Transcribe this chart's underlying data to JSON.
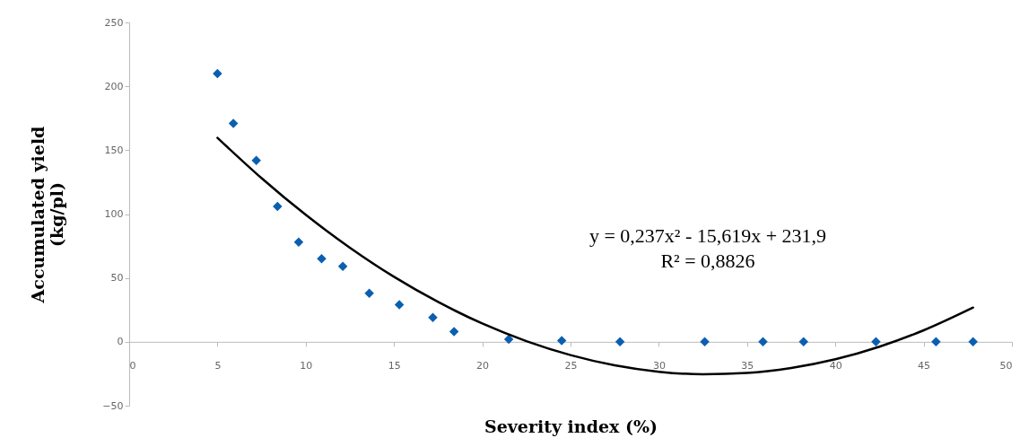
{
  "chart_data": {
    "type": "scatter",
    "xlabel": "Severity index (%)",
    "ylabel": "Accumulated yield\n(kg/pl)",
    "xlim": [
      0,
      50
    ],
    "xticks": [
      0,
      5,
      10,
      15,
      20,
      25,
      30,
      35,
      40,
      45,
      50
    ],
    "ylim": [
      -50,
      250
    ],
    "yticks": [
      -50,
      0,
      50,
      100,
      150,
      200,
      250
    ],
    "grid": false,
    "marker": "diamond",
    "annotations": [
      "y = 0,237x² - 15,619x + 231,9",
      "R² = 0,8826"
    ],
    "series": [
      {
        "color": "#0b5fb0",
        "x": [
          5,
          5.9,
          7.2,
          8.4,
          9.6,
          10.9,
          12.1,
          13.6,
          15.3,
          17.2,
          18.4,
          21.5,
          24.5,
          27.8,
          32.6,
          35.9,
          38.2,
          42.3,
          45.7,
          47.8
        ],
        "values": [
          210,
          171,
          142,
          106,
          78,
          65,
          59,
          38,
          29,
          19,
          8,
          2,
          1,
          0,
          0,
          0,
          0,
          0,
          0,
          0
        ]
      },
      {
        "type": "line",
        "color": "#000000",
        "marker": "none",
        "x": [
          5,
          7.5,
          10,
          12.5,
          15,
          17.5,
          20,
          22.5,
          25,
          27.5,
          30,
          32.5,
          35,
          37.5,
          40,
          42.5,
          45,
          47.8
        ],
        "values": [
          159.7,
          128.1,
          99.4,
          73.7,
          50.9,
          31.2,
          14.3,
          0.5,
          -10.4,
          -18.4,
          -23.4,
          -25.4,
          -24.4,
          -20.5,
          -13.7,
          -3.8,
          9.0,
          26.8
        ]
      }
    ]
  }
}
